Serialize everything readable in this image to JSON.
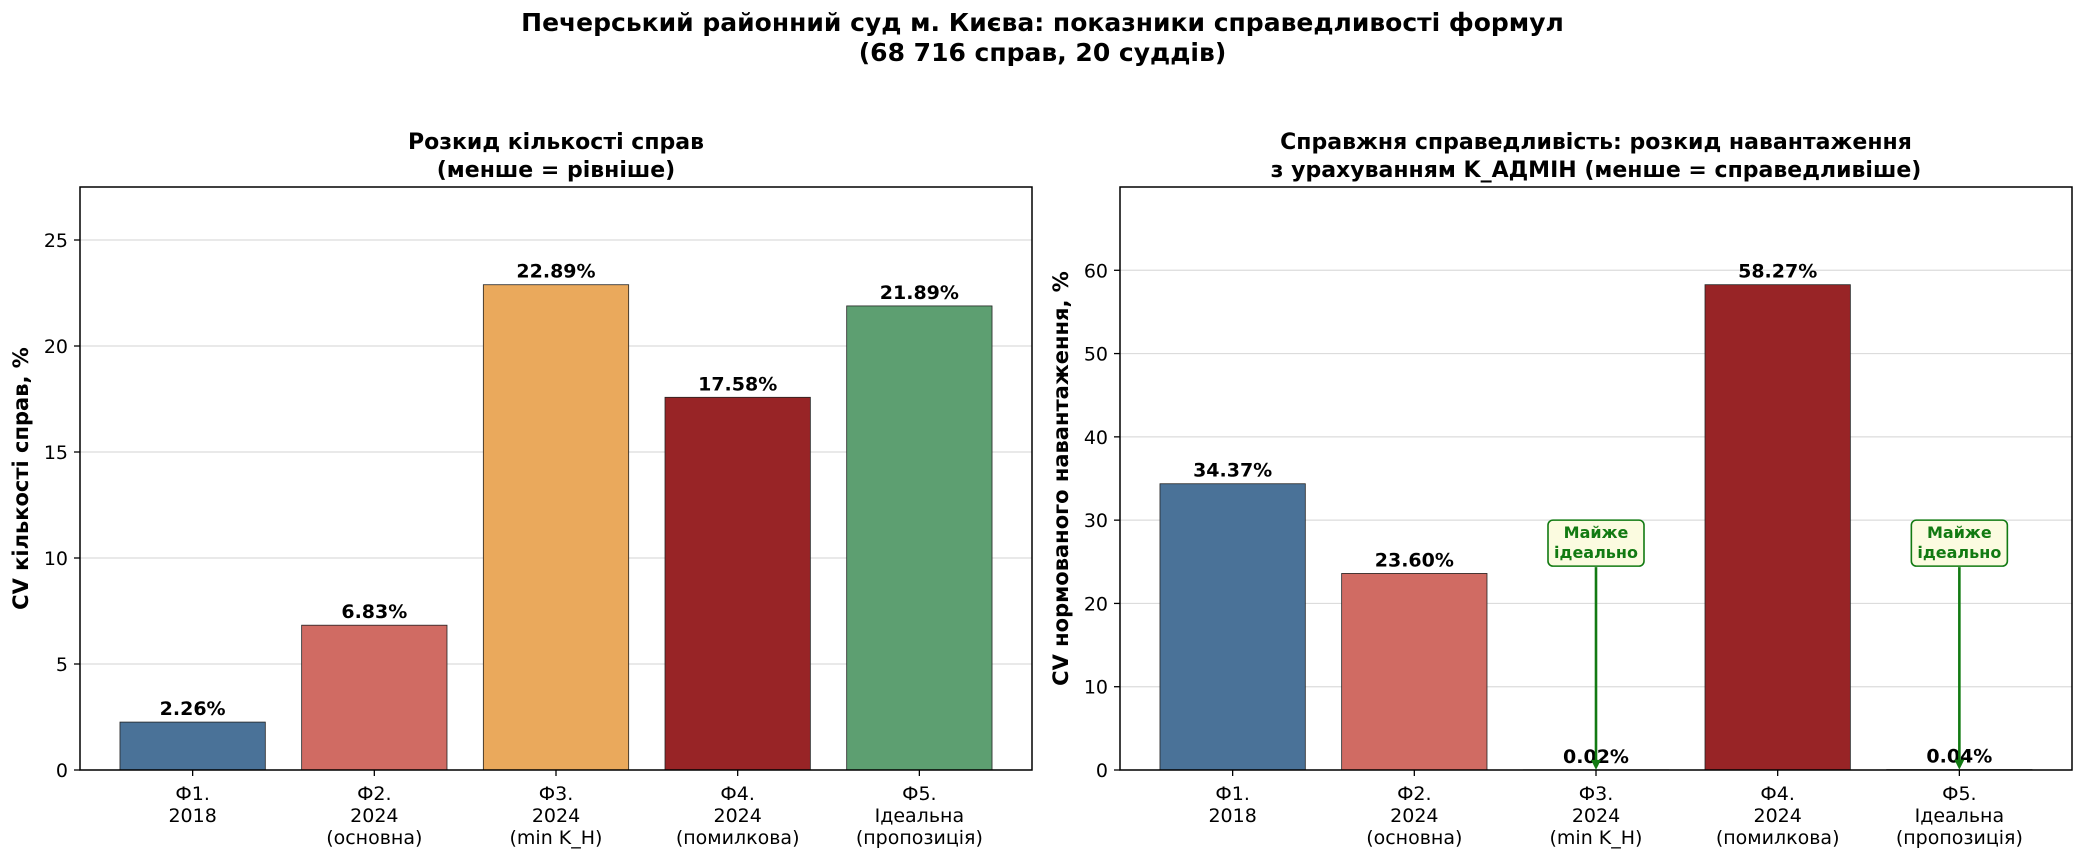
{
  "figure": {
    "title_line1": "Печерський районний суд м. Києва: показники справедливості формул",
    "title_line2": "(68 716 справ, 20 суддів)"
  },
  "colors": {
    "f1": "#4a7298",
    "f2": "#d06b63",
    "f3": "#eaa95c",
    "f4": "#982426",
    "f5": "#5d9f71",
    "annotation": "#127a12",
    "annotation_fill": "#fbfbe0"
  },
  "chart_data": [
    {
      "type": "bar",
      "title": [
        "Розкид кількості справ",
        "(менше = рівніше)"
      ],
      "xlabel": "",
      "ylabel": "CV кількості справ, %",
      "ylim": [
        0,
        27.5
      ],
      "yticks": [
        0,
        5,
        10,
        15,
        20,
        25
      ],
      "grid": "y",
      "categories": [
        [
          "Ф1.",
          "2018"
        ],
        [
          "Ф2.",
          "2024",
          "(основна)"
        ],
        [
          "Ф3.",
          "2024",
          "(min K_Н)"
        ],
        [
          "Ф4.",
          "2024",
          "(помилкова)"
        ],
        [
          "Ф5.",
          "Ідеальна",
          "(пропозиція)"
        ]
      ],
      "values": [
        2.26,
        6.83,
        22.89,
        17.58,
        21.89
      ],
      "value_labels": [
        "2.26%",
        "6.83%",
        "22.89%",
        "17.58%",
        "21.89%"
      ],
      "bar_colors": [
        "f1",
        "f2",
        "f3",
        "f4",
        "f5"
      ],
      "annotations": []
    },
    {
      "type": "bar",
      "title": [
        "Справжня справедливість: розкид навантаження",
        "з урахуванням K_АДМІН (менше = справедливіше)"
      ],
      "xlabel": "",
      "ylabel": "CV нормованого навантаження, %",
      "ylim": [
        0,
        70
      ],
      "yticks": [
        0,
        10,
        20,
        30,
        40,
        50,
        60
      ],
      "grid": "y",
      "categories": [
        [
          "Ф1.",
          "2018"
        ],
        [
          "Ф2.",
          "2024",
          "(основна)"
        ],
        [
          "Ф3.",
          "2024",
          "(min K_Н)"
        ],
        [
          "Ф4.",
          "2024",
          "(помилкова)"
        ],
        [
          "Ф5.",
          "Ідеальна",
          "(пропозиція)"
        ]
      ],
      "values": [
        34.37,
        23.6,
        0.02,
        58.27,
        0.04
      ],
      "value_labels": [
        "34.37%",
        "23.60%",
        "0.02%",
        "58.27%",
        "0.04%"
      ],
      "bar_colors": [
        "f1",
        "f2",
        "f3",
        "f4",
        "f5"
      ],
      "annotations": [
        {
          "category_index": 2,
          "text": [
            "Майже",
            "ідеально"
          ],
          "text_y": 27,
          "arrow_to": 0.02
        },
        {
          "category_index": 4,
          "text": [
            "Майже",
            "ідеально"
          ],
          "text_y": 27,
          "arrow_to": 0.04
        }
      ]
    }
  ]
}
